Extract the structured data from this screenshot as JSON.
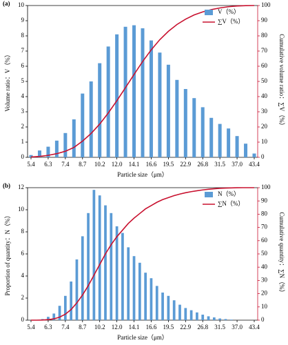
{
  "chart_data": [
    {
      "type": "bar",
      "panel_label": "(a)",
      "x_label": "Particle size（μm）",
      "y_label": "Volume ratio：V（%）",
      "y2_label": "Cumulative volume ratio：∑V（%）",
      "categories": [
        "5.4",
        null,
        "6.3",
        null,
        "7.4",
        null,
        "8.7",
        null,
        "10.2",
        null,
        "12.0",
        null,
        "14.1",
        null,
        "16.6",
        null,
        "19.5",
        null,
        "22.9",
        null,
        "26.8",
        null,
        "31.5",
        null,
        "37.0",
        null,
        "43.4"
      ],
      "series": [
        {
          "name": "V（%）",
          "color": "#5b9bd5",
          "values": [
            0.15,
            0.45,
            0.7,
            1.1,
            1.6,
            2.5,
            4.2,
            5.0,
            6.2,
            7.3,
            8.1,
            8.6,
            8.7,
            8.5,
            7.7,
            6.9,
            6.1,
            5.1,
            4.5,
            3.9,
            3.3,
            2.6,
            2.2,
            1.9,
            1.4,
            0.9,
            0.25
          ]
        },
        {
          "name": "∑V（%）",
          "color": "#c8102e",
          "axis": "y2",
          "values": [
            0.2,
            0.6,
            1.3,
            2.4,
            4.0,
            6.5,
            10.7,
            15.7,
            21.9,
            29.2,
            37.3,
            45.9,
            54.6,
            63.1,
            70.8,
            77.5,
            83.0,
            87.5,
            91.0,
            93.8,
            95.8,
            97.3,
            98.4,
            99.2,
            99.7,
            99.9,
            100
          ]
        }
      ],
      "ylim": [
        0,
        10
      ],
      "yticks": [
        0,
        1,
        2,
        3,
        4,
        5,
        6,
        7,
        8,
        9,
        10
      ],
      "y2lim": [
        0,
        100
      ],
      "y2ticks": [
        0,
        10,
        20,
        30,
        40,
        50,
        60,
        70,
        80,
        90,
        100
      ],
      "legend": "upper right"
    },
    {
      "type": "bar",
      "panel_label": "(b)",
      "x_label": "Particle size（μm）",
      "y_label": "Proportion of quantity：N（%）",
      "y2_label": "Cumulative quantity：∑N（%）",
      "categories": [
        "5.4",
        null,
        null,
        "6.3",
        null,
        null,
        "7.4",
        null,
        null,
        "8.7",
        null,
        null,
        "10.2",
        null,
        null,
        "12.0",
        null,
        null,
        "14.1",
        null,
        null,
        "16.6",
        null,
        null,
        "19.5",
        null,
        null,
        "22.9",
        null,
        null,
        "26.8",
        null,
        null,
        "31.5",
        null,
        null,
        "37.0",
        null,
        null,
        "43.4"
      ],
      "series": [
        {
          "name": "N（%）",
          "color": "#5b9bd5",
          "values": [
            0,
            0,
            0.1,
            0.3,
            0.6,
            1.3,
            2.2,
            3.5,
            5.5,
            7.6,
            9.7,
            11.8,
            11.3,
            10.4,
            9.7,
            8.5,
            7.9,
            6.6,
            5.8,
            5.2,
            4.3,
            3.8,
            3.1,
            2.5,
            2.2,
            1.8,
            1.4,
            1.1,
            0.9,
            0.7,
            0.5,
            0.35,
            0.25,
            0.15,
            0.1,
            0.05,
            0,
            0,
            0,
            0
          ]
        },
        {
          "name": "∑N（%）",
          "color": "#c8102e",
          "axis": "y2",
          "values": [
            0,
            0,
            0.1,
            0.4,
            1.0,
            2.3,
            4.5,
            8,
            13,
            19,
            26,
            34,
            42,
            50,
            57,
            63,
            68,
            73,
            77,
            80.5,
            84,
            86.5,
            89,
            91,
            92.5,
            94,
            95.2,
            96.2,
            97,
            97.7,
            98.3,
            98.8,
            99.2,
            99.5,
            99.7,
            99.85,
            99.95,
            100,
            100,
            100
          ]
        }
      ],
      "ylim": [
        0,
        12
      ],
      "yticks": [
        0,
        2,
        4,
        6,
        8,
        10,
        12
      ],
      "y2lim": [
        0,
        100
      ],
      "y2ticks": [
        0,
        10,
        20,
        30,
        40,
        50,
        60,
        70,
        80,
        90,
        100
      ],
      "legend": "upper right"
    }
  ]
}
